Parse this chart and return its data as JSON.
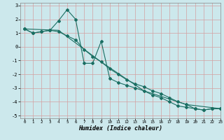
{
  "xlabel": "Humidex (Indice chaleur)",
  "background_color": "#cce8ec",
  "grid_color": "#d4a0a0",
  "line_color": "#1a6e62",
  "xlim": [
    -0.5,
    23
  ],
  "ylim": [
    -5.2,
    3.2
  ],
  "xticks": [
    0,
    1,
    2,
    3,
    4,
    5,
    6,
    7,
    8,
    9,
    10,
    11,
    12,
    13,
    14,
    15,
    16,
    17,
    18,
    19,
    20,
    21,
    22,
    23
  ],
  "yticks": [
    -5,
    -4,
    -3,
    -2,
    -1,
    0,
    1,
    2,
    3
  ],
  "series1_x": [
    0,
    1,
    2,
    3,
    4,
    5,
    6,
    7,
    8,
    9,
    10,
    11,
    12,
    13,
    14,
    15,
    16,
    17,
    18,
    19,
    20,
    21,
    22,
    23
  ],
  "series1_y": [
    1.3,
    1.0,
    1.1,
    1.2,
    1.9,
    2.7,
    2.0,
    -1.2,
    -1.2,
    0.4,
    -2.3,
    -2.6,
    -2.8,
    -3.0,
    -3.2,
    -3.5,
    -3.7,
    -4.0,
    -4.3,
    -4.4,
    -4.5,
    -4.6,
    -4.5,
    -4.5
  ],
  "series2_x": [
    0,
    1,
    2,
    3,
    4,
    5,
    6,
    7,
    8,
    9,
    10,
    11,
    12,
    13,
    14,
    15,
    16,
    17,
    18,
    19,
    20,
    21,
    22,
    23
  ],
  "series2_y": [
    1.3,
    1.0,
    1.1,
    1.2,
    1.1,
    0.8,
    0.5,
    -0.2,
    -0.7,
    -1.1,
    -1.6,
    -2.0,
    -2.4,
    -2.7,
    -2.9,
    -3.2,
    -3.4,
    -3.7,
    -4.0,
    -4.2,
    -4.5,
    -4.6,
    -4.5,
    -4.5
  ],
  "series3_x": [
    0,
    4,
    9,
    14,
    19,
    23
  ],
  "series3_y": [
    1.3,
    1.2,
    -1.1,
    -3.2,
    -4.2,
    -4.5
  ],
  "marker": "D",
  "marker_size": 2.0,
  "linewidth": 0.8
}
